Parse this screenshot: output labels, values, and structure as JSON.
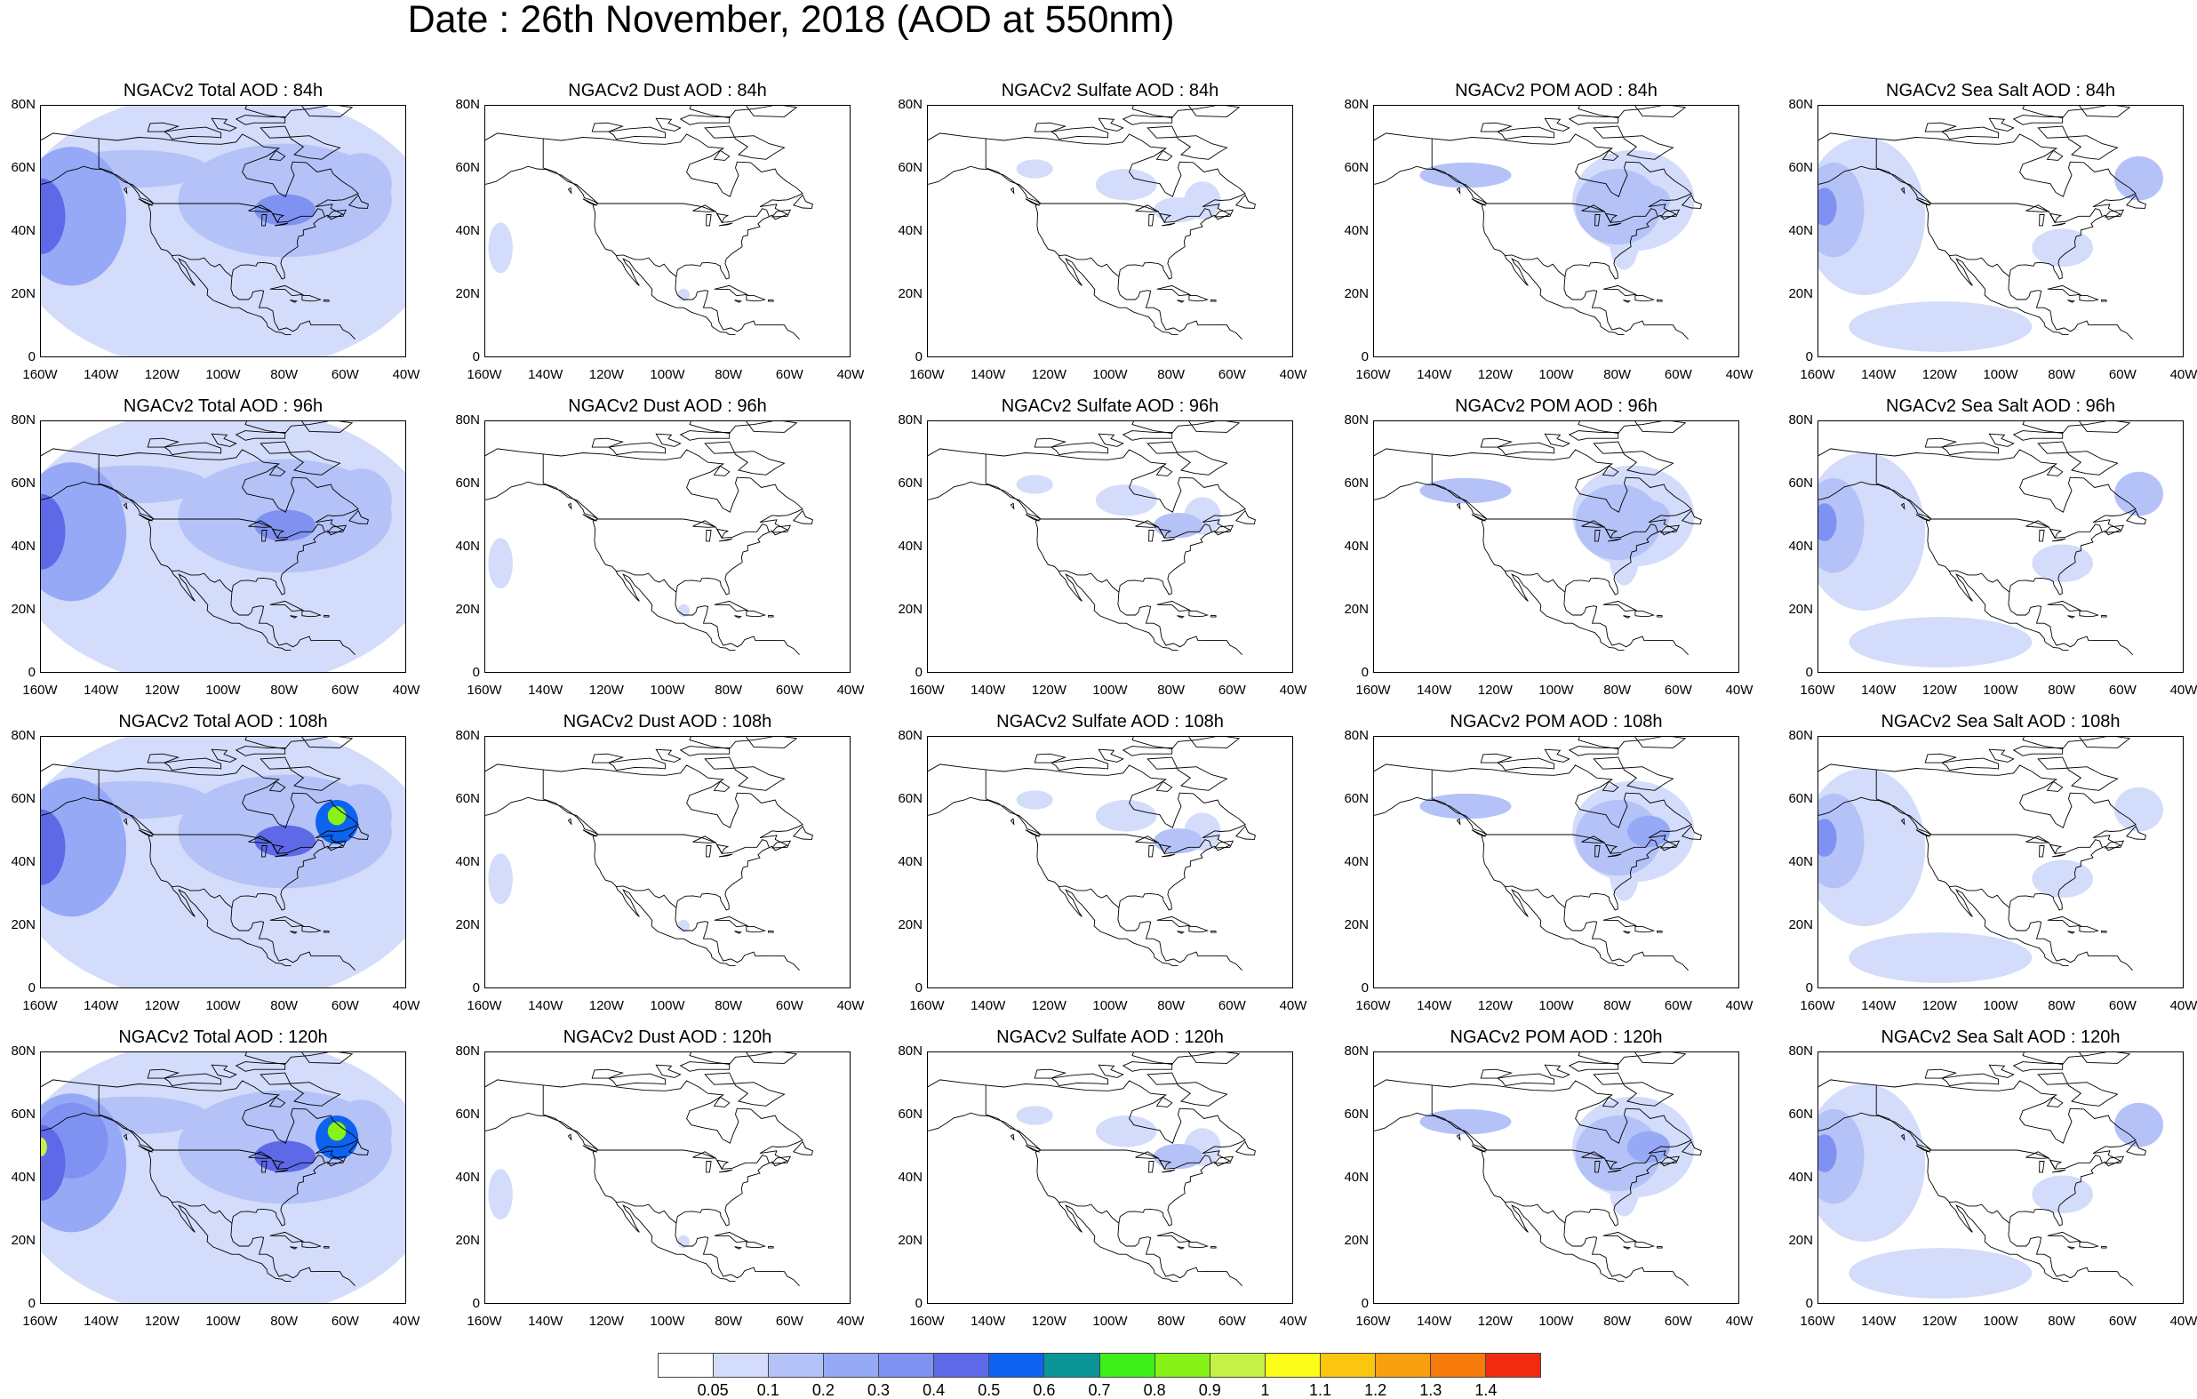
{
  "title": "Date : 26th November, 2018 (AOD at 550nm)",
  "lat_ticks": [
    "80N",
    "60N",
    "40N",
    "20N",
    "0"
  ],
  "lon_ticks": [
    "160W",
    "140W",
    "120W",
    "100W",
    "80W",
    "60W",
    "40W"
  ],
  "panels": [
    {
      "title": "NGACv2 Total AOD : 84h",
      "species": "total"
    },
    {
      "title": "NGACv2 Dust AOD : 84h",
      "species": "dust"
    },
    {
      "title": "NGACv2 Sulfate AOD : 84h",
      "species": "sulfate"
    },
    {
      "title": "NGACv2 POM AOD : 84h",
      "species": "pom"
    },
    {
      "title": "NGACv2 Sea Salt AOD : 84h",
      "species": "seasalt"
    },
    {
      "title": "NGACv2 Total AOD : 96h",
      "species": "total"
    },
    {
      "title": "NGACv2 Dust AOD : 96h",
      "species": "dust"
    },
    {
      "title": "NGACv2 Sulfate AOD : 96h",
      "species": "sulfate"
    },
    {
      "title": "NGACv2 POM AOD : 96h",
      "species": "pom"
    },
    {
      "title": "NGACv2 Sea Salt AOD : 96h",
      "species": "seasalt"
    },
    {
      "title": "NGACv2 Total AOD : 108h",
      "species": "total"
    },
    {
      "title": "NGACv2 Dust AOD : 108h",
      "species": "dust"
    },
    {
      "title": "NGACv2 Sulfate AOD : 108h",
      "species": "sulfate"
    },
    {
      "title": "NGACv2 POM AOD : 108h",
      "species": "pom"
    },
    {
      "title": "NGACv2 Sea Salt AOD : 108h",
      "species": "seasalt"
    },
    {
      "title": "NGACv2 Total AOD : 120h",
      "species": "total"
    },
    {
      "title": "NGACv2 Dust AOD : 120h",
      "species": "dust"
    },
    {
      "title": "NGACv2 Sulfate AOD : 120h",
      "species": "sulfate"
    },
    {
      "title": "NGACv2 POM AOD : 120h",
      "species": "pom"
    },
    {
      "title": "NGACv2 Sea Salt  AOD : 120h",
      "species": "seasalt"
    }
  ],
  "colorbar": {
    "labels": [
      "0.05",
      "0.1",
      "0.2",
      "0.3",
      "0.4",
      "0.5",
      "0.6",
      "0.7",
      "0.8",
      "0.9",
      "1",
      "1.1",
      "1.2",
      "1.3",
      "1.4"
    ],
    "colors": [
      "#ffffff",
      "#d3dcfa",
      "#b4c2f7",
      "#95a9f6",
      "#7f92f2",
      "#5e69e8",
      "#0d62f0",
      "#0a9696",
      "#3ef01a",
      "#86f218",
      "#c6f247",
      "#fdfd1a",
      "#fbc610",
      "#f9a010",
      "#f67a0a",
      "#f22a10"
    ]
  }
}
